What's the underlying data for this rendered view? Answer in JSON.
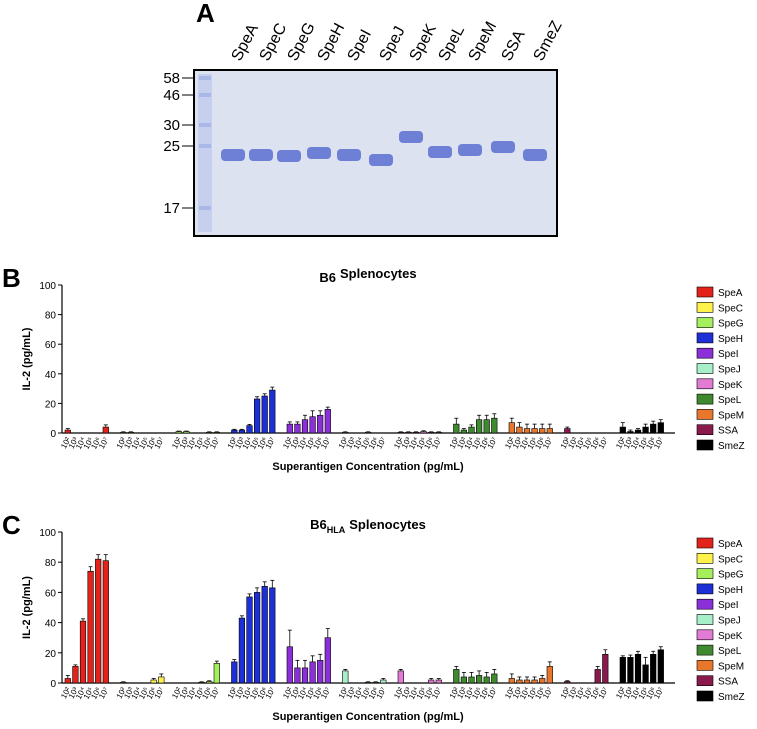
{
  "gel": {
    "panel": "A",
    "lanes": [
      "SpeA",
      "SpeC",
      "SpeG",
      "SpeH",
      "SpeI",
      "SpeJ",
      "SpeK",
      "SpeL",
      "SpeM",
      "SSA",
      "SmeZ"
    ],
    "markers": [
      58,
      46,
      30,
      25,
      17
    ]
  },
  "chart_data": [
    {
      "type": "bar",
      "panel": "B",
      "title": "B6",
      "title_subscript": "",
      "title_suffix": "Splenocytes",
      "ylabel": "IL-2 (pg/mL)",
      "xlabel": "Superantigen Concentration (pg/mL)",
      "categories": [
        "10²",
        "10³",
        "10⁴",
        "10⁵",
        "10⁶",
        "10⁷"
      ],
      "ylim": [
        0,
        100
      ],
      "yticks": [
        0,
        20,
        40,
        60,
        80,
        100
      ],
      "legend": "right",
      "series": [
        {
          "name": "SpeA",
          "color": "#e3231b",
          "values": [
            2,
            0,
            0,
            0,
            0,
            4
          ],
          "errors": [
            1,
            0,
            0,
            0,
            0,
            1.5
          ]
        },
        {
          "name": "SpeC",
          "color": "#fff24a",
          "values": [
            0.5,
            0.5,
            0,
            0,
            0,
            0
          ],
          "errors": [
            0.3,
            0.3,
            0,
            0,
            0,
            0
          ]
        },
        {
          "name": "SpeG",
          "color": "#a6ef5c",
          "values": [
            1,
            1,
            0,
            0,
            0.5,
            0.5
          ],
          "errors": [
            0.3,
            0.3,
            0,
            0,
            0.3,
            0.3
          ]
        },
        {
          "name": "SpeH",
          "color": "#1d2fd6",
          "values": [
            2,
            2,
            5,
            23,
            25,
            29
          ],
          "errors": [
            0.5,
            0.5,
            0.8,
            1.5,
            1.5,
            2
          ]
        },
        {
          "name": "SpeI",
          "color": "#8b2fd9",
          "values": [
            6,
            6,
            9,
            11,
            12,
            16
          ],
          "errors": [
            1.5,
            1.5,
            3,
            4,
            3,
            1.5
          ]
        },
        {
          "name": "SpeJ",
          "color": "#a7efc8",
          "values": [
            0.5,
            0,
            0,
            0.5,
            0,
            0
          ],
          "errors": [
            0.3,
            0,
            0,
            0.3,
            0,
            0
          ]
        },
        {
          "name": "SpeK",
          "color": "#e27bd3",
          "values": [
            0.5,
            0.5,
            0.5,
            1,
            0.5,
            0.5
          ],
          "errors": [
            0.3,
            0.3,
            0.3,
            0.5,
            0.3,
            0.3
          ]
        },
        {
          "name": "SpeL",
          "color": "#3f8a2f",
          "values": [
            6,
            2,
            4,
            9,
            9,
            10
          ],
          "errors": [
            4,
            1,
            1.5,
            3,
            3,
            3
          ]
        },
        {
          "name": "SpeM",
          "color": "#e8772b",
          "values": [
            7,
            4,
            3,
            3,
            3,
            3
          ],
          "errors": [
            3,
            3,
            3,
            3,
            3,
            3
          ]
        },
        {
          "name": "SSA",
          "color": "#8b1a4c",
          "values": [
            3,
            0,
            0,
            0,
            0,
            0
          ],
          "errors": [
            1,
            0,
            0,
            0,
            0,
            0
          ]
        },
        {
          "name": "SmeZ",
          "color": "#000000",
          "values": [
            4,
            1,
            2,
            4,
            6,
            7
          ],
          "errors": [
            3,
            1,
            1,
            2,
            2,
            2
          ]
        }
      ]
    },
    {
      "type": "bar",
      "panel": "C",
      "title": "B6",
      "title_subscript": "HLA",
      "title_suffix": "Splenocytes",
      "ylabel": "IL-2 (pg/mL)",
      "xlabel": "Superantigen Concentration (pg/mL)",
      "categories": [
        "10²",
        "10³",
        "10⁴",
        "10⁵",
        "10⁶",
        "10⁷"
      ],
      "ylim": [
        0,
        100
      ],
      "yticks": [
        0,
        20,
        40,
        60,
        80,
        100
      ],
      "legend": "right",
      "series": [
        {
          "name": "SpeA",
          "color": "#e3231b",
          "values": [
            3,
            11,
            41,
            74,
            82,
            81
          ],
          "errors": [
            2,
            1,
            1.5,
            3,
            3,
            4
          ]
        },
        {
          "name": "SpeC",
          "color": "#fff24a",
          "values": [
            0.5,
            0,
            0,
            0,
            2,
            4
          ],
          "errors": [
            0.3,
            0,
            0,
            0,
            1,
            2
          ]
        },
        {
          "name": "SpeG",
          "color": "#a6ef5c",
          "values": [
            0,
            0,
            0,
            0.5,
            1,
            13
          ],
          "errors": [
            0,
            0,
            0,
            0.3,
            0.5,
            1.5
          ]
        },
        {
          "name": "SpeH",
          "color": "#1d2fd6",
          "values": [
            14,
            43,
            57,
            60,
            64,
            63
          ],
          "errors": [
            1.5,
            1.5,
            2,
            3,
            3,
            5
          ]
        },
        {
          "name": "SpeI",
          "color": "#8b2fd9",
          "values": [
            24,
            10,
            10,
            14,
            15,
            30
          ],
          "errors": [
            11,
            5,
            5,
            4,
            4,
            6
          ]
        },
        {
          "name": "SpeJ",
          "color": "#a7efc8",
          "values": [
            8,
            0,
            0,
            0.5,
            0.5,
            2
          ],
          "errors": [
            1,
            0,
            0,
            0.3,
            0.3,
            1
          ]
        },
        {
          "name": "SpeK",
          "color": "#e27bd3",
          "values": [
            8,
            0,
            0,
            0,
            2,
            2
          ],
          "errors": [
            1,
            0,
            0,
            0,
            1,
            1
          ]
        },
        {
          "name": "SpeL",
          "color": "#3f8a2f",
          "values": [
            9,
            4,
            4,
            5,
            4,
            6
          ],
          "errors": [
            2,
            3,
            3,
            3,
            3,
            3
          ]
        },
        {
          "name": "SpeM",
          "color": "#e8772b",
          "values": [
            3,
            2,
            2,
            2,
            3,
            11
          ],
          "errors": [
            3,
            2,
            2,
            2,
            2,
            3
          ]
        },
        {
          "name": "SSA",
          "color": "#8b1a4c",
          "values": [
            1,
            0,
            0,
            0,
            9,
            19
          ],
          "errors": [
            0.5,
            0,
            0,
            0,
            2,
            3
          ]
        },
        {
          "name": "SmeZ",
          "color": "#000000",
          "values": [
            17,
            17,
            19,
            12,
            19,
            22
          ],
          "errors": [
            1,
            1.5,
            2,
            5,
            2,
            2
          ]
        }
      ]
    }
  ]
}
